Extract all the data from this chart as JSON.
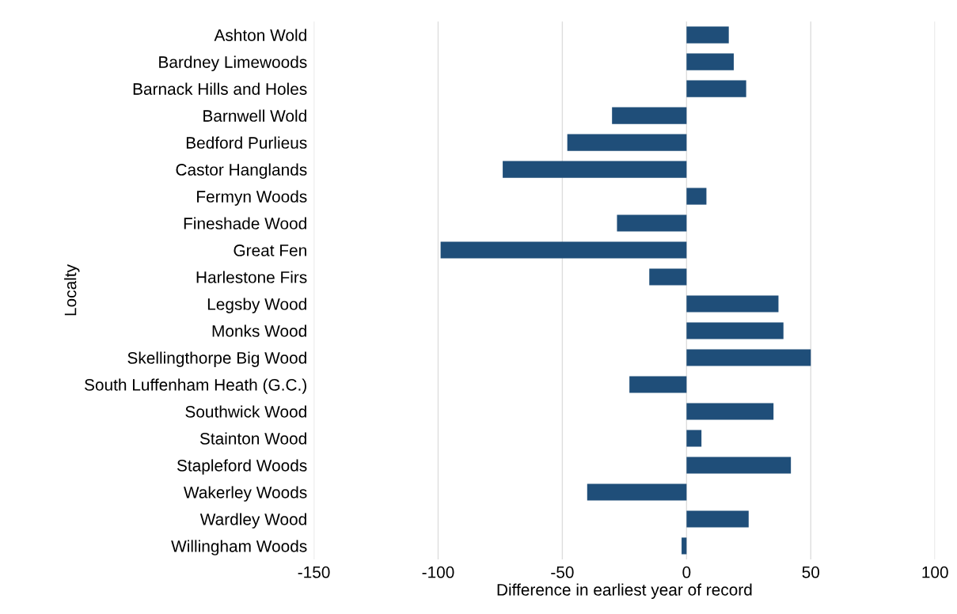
{
  "chart_data": {
    "type": "bar",
    "orientation": "horizontal",
    "xlabel": "Difference in earliest year of record",
    "ylabel": "Localty",
    "categories": [
      "Ashton Wold",
      "Bardney Limewoods",
      "Barnack Hills and Holes",
      "Barnwell Wold",
      "Bedford Purlieus",
      "Castor Hanglands",
      "Fermyn Woods",
      "Fineshade Wood",
      "Great Fen",
      "Harlestone Firs",
      "Legsby Wood",
      "Monks Wood",
      "Skellingthorpe Big Wood",
      "South Luffenham Heath (G.C.)",
      "Southwick Wood",
      "Stainton Wood",
      "Stapleford Woods",
      "Wakerley Woods",
      "Wardley Wood",
      "Willingham Woods"
    ],
    "values": [
      17,
      19,
      24,
      -30,
      -48,
      -74,
      8,
      -28,
      -99,
      -15,
      37,
      39,
      50,
      -23,
      35,
      6,
      42,
      -40,
      25,
      -2
    ],
    "color": "#1f4e79",
    "xlim": [
      -150,
      100
    ],
    "xticks": [
      -150,
      -100,
      -50,
      0,
      50,
      100
    ],
    "grid": "x"
  }
}
